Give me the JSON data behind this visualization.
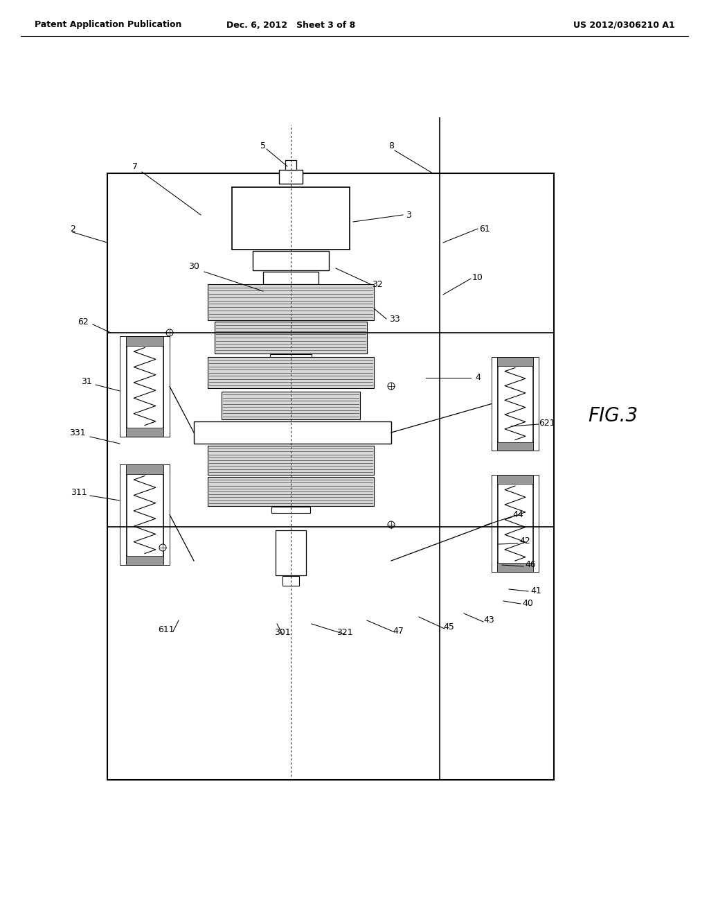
{
  "bg_color": "#ffffff",
  "header_left": "Patent Application Publication",
  "header_mid": "Dec. 6, 2012   Sheet 3 of 8",
  "header_right": "US 2012/0306210 A1",
  "fig_label": "FIG.3"
}
